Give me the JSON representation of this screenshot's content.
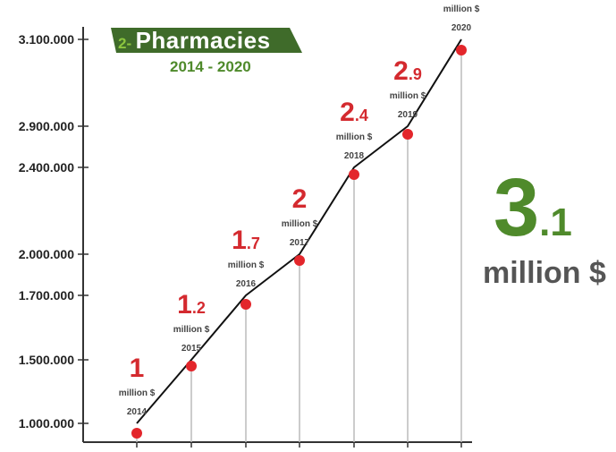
{
  "chart_data": {
    "type": "line",
    "title_prefix": "2-",
    "title": "Pharmacies",
    "subtitle": "2014 - 2020",
    "y_ticks": [
      "1.000.000",
      "1.500.000",
      "1.700.000",
      "2.000.000",
      "2.400.000",
      "2.900.000",
      "3.100.000"
    ],
    "grid": false,
    "points": [
      {
        "year": "2014",
        "value_int": "1",
        "value_dec": "",
        "unit": "million $",
        "value": 1.0
      },
      {
        "year": "2015",
        "value_int": "1",
        "value_dec": ".2",
        "unit": "million $",
        "value": 1.2
      },
      {
        "year": "2016",
        "value_int": "1",
        "value_dec": ".7",
        "unit": "million $",
        "value": 1.7
      },
      {
        "year": "2017",
        "value_int": "2",
        "value_dec": "",
        "unit": "million $",
        "value": 2.0
      },
      {
        "year": "2018",
        "value_int": "2",
        "value_dec": ".4",
        "unit": "million $",
        "value": 2.4
      },
      {
        "year": "2019",
        "value_int": "2",
        "value_dec": ".9",
        "unit": "million $",
        "value": 2.9
      },
      {
        "year": "2020",
        "value_int": "3",
        "value_dec": ".1",
        "unit": "million $",
        "value": 3.1
      }
    ],
    "total": {
      "int": "3",
      "dec": ".1",
      "unit": "million $"
    },
    "colors": {
      "line": "#111111",
      "point": "#e3262b",
      "label": "#d42a2f",
      "accent_green": "#4f8a2b",
      "banner": "#3f6b2a",
      "axis": "#333333"
    }
  }
}
